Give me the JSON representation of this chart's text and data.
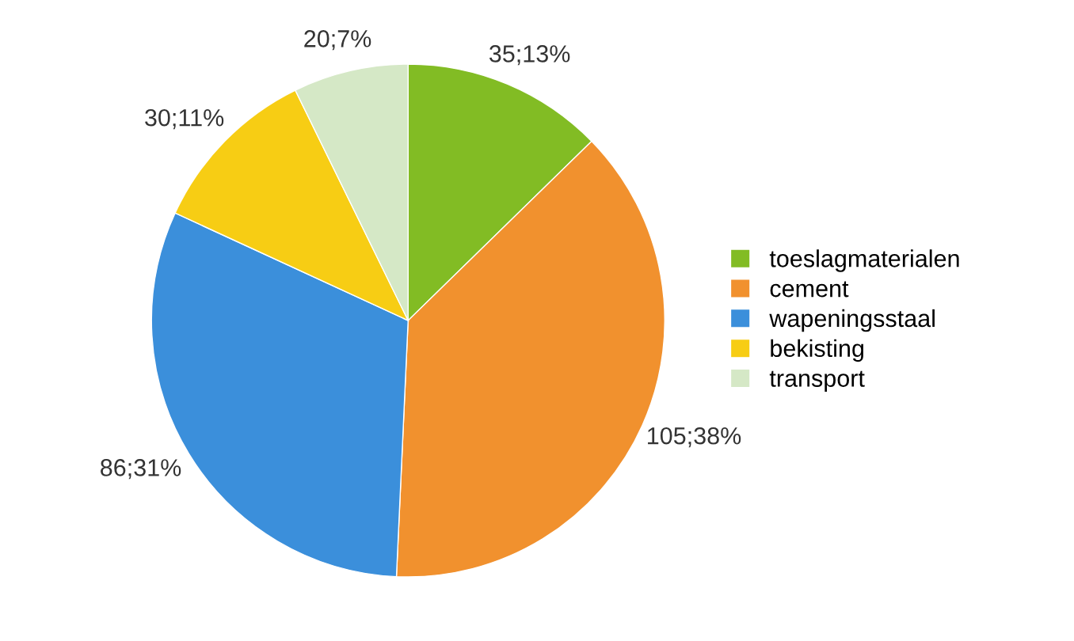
{
  "chart_data": {
    "type": "pie",
    "categories": [
      "toeslagmaterialen",
      "cement",
      "wapeningsstaal",
      "bekisting",
      "transport"
    ],
    "values": [
      35,
      105,
      86,
      30,
      20
    ],
    "colors": [
      "#82bc24",
      "#f1912e",
      "#3b8fdb",
      "#f7cd14",
      "#d5e8c6"
    ],
    "value_labels": [
      "35;13%",
      "105;38%",
      "86;31%",
      "30;11%",
      "20;7%"
    ],
    "legend": "right"
  }
}
